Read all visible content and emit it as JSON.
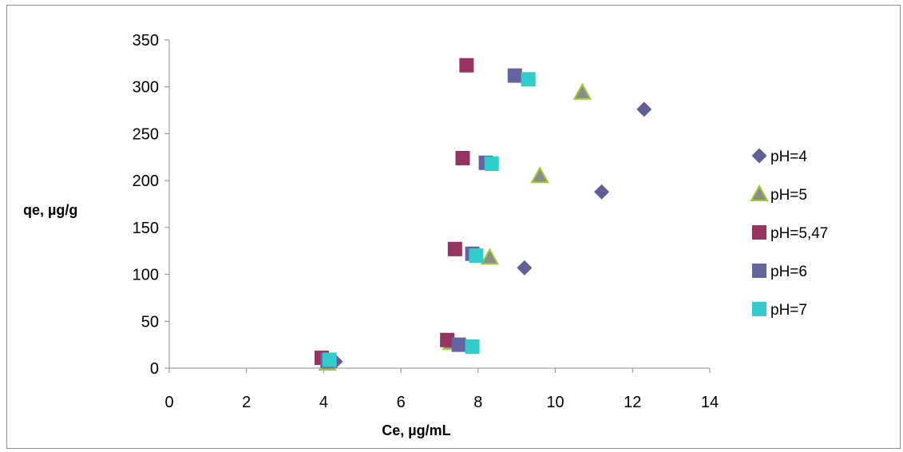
{
  "chart_data": {
    "type": "scatter",
    "title": "",
    "xlabel": "Ce, µg/mL",
    "ylabel": "qe, µg/g",
    "xlim": [
      0,
      14
    ],
    "ylim": [
      0,
      350
    ],
    "x_ticks": [
      0,
      2,
      4,
      6,
      8,
      10,
      12,
      14
    ],
    "y_ticks": [
      0,
      50,
      100,
      150,
      200,
      250,
      300,
      350
    ],
    "grid": false,
    "legend_position": "right",
    "series": [
      {
        "name": "pH=4",
        "marker": "diamond",
        "color": "#5F5F96",
        "points": [
          [
            4.3,
            7
          ],
          [
            9.2,
            107
          ],
          [
            11.2,
            188
          ],
          [
            12.3,
            276
          ]
        ]
      },
      {
        "name": "pH=5",
        "marker": "triangle",
        "color": "#8C8C8C",
        "stroke": "#9ACD32",
        "points": [
          [
            4.1,
            5
          ],
          [
            7.3,
            27
          ],
          [
            8.3,
            118
          ],
          [
            9.6,
            205
          ],
          [
            10.7,
            294
          ]
        ]
      },
      {
        "name": "pH=5,47",
        "marker": "square",
        "color": "#953460",
        "points": [
          [
            3.95,
            11
          ],
          [
            7.2,
            30
          ],
          [
            7.4,
            127
          ],
          [
            7.6,
            224
          ],
          [
            7.7,
            323
          ]
        ]
      },
      {
        "name": "pH=6",
        "marker": "square",
        "color": "#6464A0",
        "points": [
          [
            4.1,
            8
          ],
          [
            7.5,
            25
          ],
          [
            7.85,
            122
          ],
          [
            8.2,
            219
          ],
          [
            8.95,
            312
          ]
        ]
      },
      {
        "name": "pH=7",
        "marker": "square",
        "color": "#33CCCC",
        "points": [
          [
            4.15,
            9
          ],
          [
            7.85,
            23
          ],
          [
            7.95,
            120
          ],
          [
            8.35,
            218
          ],
          [
            9.3,
            308
          ]
        ]
      }
    ]
  }
}
